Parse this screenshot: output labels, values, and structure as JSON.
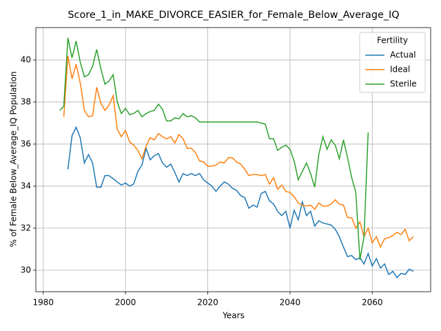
{
  "chart_data": {
    "type": "line",
    "title": "Score_1_in_MAKE_DIVORCE_EASIER_for_Female_Below_Average_IQ",
    "xlabel": "Years",
    "ylabel": "% of Female Below_Average_IQ Population",
    "legend_title": "Fertility",
    "legend": "upper right",
    "grid": true,
    "xlim": [
      1978.2,
      2074.2
    ],
    "ylim": [
      28.98,
      41.54
    ],
    "xticks": [
      1980,
      2000,
      2020,
      2040,
      2060
    ],
    "yticks": [
      30,
      32,
      34,
      36,
      38,
      40
    ],
    "x": [
      1984,
      1985,
      1986,
      1987,
      1988,
      1989,
      1990,
      1991,
      1992,
      1993,
      1994,
      1995,
      1996,
      1997,
      1998,
      1999,
      2000,
      2001,
      2002,
      2003,
      2004,
      2005,
      2006,
      2007,
      2008,
      2009,
      2010,
      2011,
      2012,
      2013,
      2014,
      2015,
      2016,
      2017,
      2018,
      2019,
      2020,
      2021,
      2022,
      2023,
      2024,
      2025,
      2026,
      2027,
      2028,
      2029,
      2030,
      2031,
      2032,
      2033,
      2034,
      2035,
      2036,
      2037,
      2038,
      2039,
      2040,
      2041,
      2042,
      2043,
      2044,
      2045,
      2046,
      2047,
      2048,
      2049,
      2050,
      2051,
      2052,
      2053,
      2054,
      2055,
      2056,
      2057,
      2058,
      2059,
      2060,
      2061,
      2062,
      2063,
      2064,
      2065,
      2066,
      2067,
      2068,
      2069,
      2070
    ],
    "series": [
      {
        "name": "Actual",
        "color": "#1f77b4",
        "values": [
          null,
          null,
          34.8,
          36.4,
          36.8,
          36.3,
          35.1,
          35.5,
          35.1,
          33.95,
          33.95,
          34.5,
          34.5,
          34.35,
          34.2,
          34.05,
          34.15,
          34.0,
          34.1,
          34.7,
          35.0,
          35.8,
          35.25,
          35.45,
          35.55,
          35.1,
          34.9,
          35.05,
          34.65,
          34.2,
          34.6,
          34.5,
          34.6,
          34.5,
          34.6,
          34.3,
          34.15,
          34.0,
          33.75,
          34.0,
          34.2,
          34.1,
          33.9,
          33.8,
          33.55,
          33.45,
          32.95,
          33.1,
          33.0,
          33.65,
          33.75,
          33.3,
          33.15,
          32.8,
          32.6,
          32.8,
          32.0,
          32.85,
          32.4,
          33.25,
          32.6,
          32.8,
          32.1,
          32.35,
          32.25,
          32.2,
          32.15,
          31.95,
          31.6,
          31.1,
          30.65,
          30.7,
          30.5,
          30.6,
          30.3,
          30.8,
          30.2,
          30.55,
          30.1,
          30.3,
          29.8,
          29.95,
          29.65,
          29.85,
          29.8,
          30.05,
          29.95
        ]
      },
      {
        "name": "Ideal",
        "color": "#ff7f0e",
        "values": [
          null,
          37.3,
          40.2,
          39.1,
          39.8,
          38.9,
          37.6,
          37.3,
          37.35,
          38.7,
          37.95,
          37.6,
          37.85,
          38.3,
          36.7,
          36.35,
          36.65,
          36.1,
          35.95,
          35.7,
          35.3,
          35.9,
          36.3,
          36.2,
          36.5,
          36.35,
          36.25,
          36.35,
          36.05,
          36.45,
          36.25,
          35.8,
          35.8,
          35.6,
          35.2,
          35.15,
          34.95,
          34.95,
          35.0,
          35.15,
          35.1,
          35.35,
          35.35,
          35.15,
          35.05,
          34.8,
          34.5,
          34.55,
          34.55,
          34.5,
          34.55,
          34.1,
          34.4,
          33.85,
          34.05,
          33.75,
          33.7,
          33.5,
          33.2,
          33.1,
          33.05,
          33.1,
          32.9,
          33.2,
          33.05,
          33.05,
          33.15,
          33.35,
          33.15,
          33.1,
          32.5,
          32.5,
          32.0,
          32.3,
          31.6,
          32.0,
          31.3,
          31.6,
          31.1,
          31.5,
          31.55,
          31.65,
          31.8,
          31.7,
          31.95,
          31.4,
          31.6
        ]
      },
      {
        "name": "Sterile",
        "color": "#2ca02c",
        "values": [
          37.6,
          37.8,
          41.05,
          40.1,
          40.9,
          39.9,
          39.2,
          39.3,
          39.7,
          40.5,
          39.6,
          38.85,
          39.0,
          39.3,
          38.0,
          37.45,
          37.7,
          37.4,
          37.45,
          37.6,
          37.3,
          37.45,
          37.55,
          37.6,
          37.9,
          37.65,
          37.1,
          37.1,
          37.25,
          37.2,
          37.45,
          37.3,
          37.35,
          37.25,
          37.05,
          37.05,
          37.05,
          37.05,
          37.05,
          37.05,
          37.05,
          37.05,
          37.05,
          37.05,
          37.05,
          37.05,
          37.05,
          37.05,
          37.05,
          37.0,
          36.95,
          36.25,
          36.25,
          35.7,
          35.85,
          35.95,
          35.75,
          35.2,
          34.3,
          34.7,
          35.1,
          34.6,
          33.95,
          35.5,
          36.35,
          35.75,
          36.2,
          35.95,
          35.3,
          36.2,
          35.35,
          34.4,
          33.7,
          30.5,
          31.6,
          36.55,
          null,
          null,
          null,
          null,
          null,
          null,
          null,
          null,
          null,
          null,
          null
        ]
      }
    ]
  }
}
